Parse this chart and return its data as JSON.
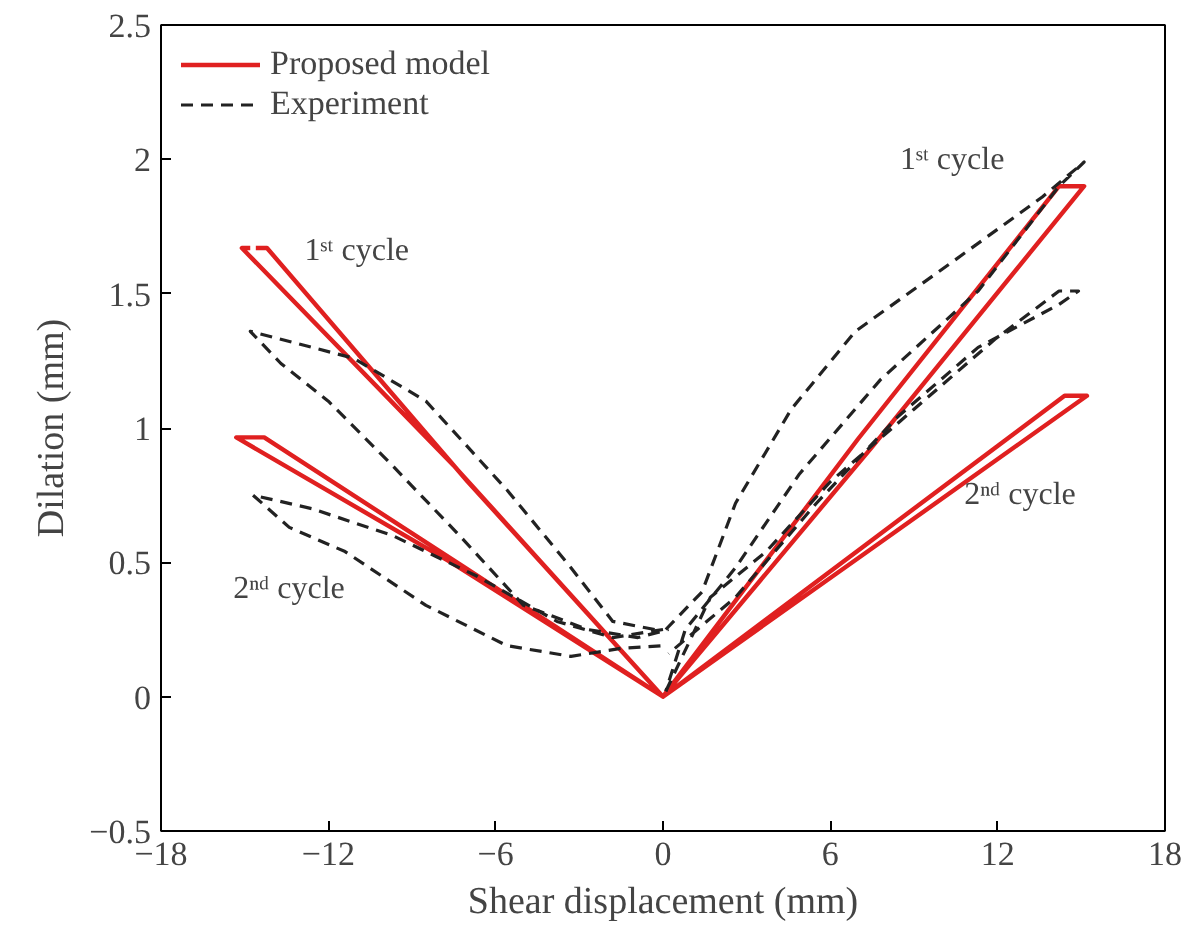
{
  "chart_data": {
    "type": "line",
    "xlabel": "Shear displacement (mm)",
    "ylabel": "Dilation (mm)",
    "xlim": [
      -18,
      18
    ],
    "xticks": [
      -18,
      -12,
      -6,
      0,
      6,
      12,
      18
    ],
    "ylim": [
      -0.5,
      2.5
    ],
    "yticks": [
      -0.5,
      0,
      0.5,
      1,
      1.5,
      2,
      2.5
    ],
    "grid": false,
    "legend": "top left",
    "marker": "none",
    "series": [
      {
        "name": "Proposed model",
        "color": "#e02020",
        "line_style": "solid",
        "x": [
          -14.6,
          -14.2,
          -7.0,
          0,
          -7.6,
          -15.3,
          -14.3,
          -7.1,
          0,
          7.5,
          15.1,
          14.2,
          7.0,
          0,
          7.6,
          15.2,
          14.4,
          7.2,
          0,
          -7.5,
          -15.1,
          -14.8
        ],
        "values": [
          1.67,
          1.67,
          0.8,
          0,
          0.5,
          0.965,
          0.965,
          0.48,
          0,
          0.93,
          1.9,
          1.9,
          0.96,
          0,
          0.56,
          1.12,
          1.12,
          0.56,
          0,
          0.86,
          1.67,
          1.67
        ]
      },
      {
        "name": "Experiment",
        "color": "#222222",
        "line_style": "dashed",
        "x": [
          -0.3,
          -1.8,
          -3.3,
          -5.6,
          -8.5,
          -11.1,
          -14.8,
          -13.7,
          -12.0,
          -9.7,
          -7.3,
          -5.0,
          -2.7,
          -0.9,
          0.2
        ],
        "values": [
          0.25,
          0.28,
          0.48,
          0.77,
          1.1,
          1.26,
          1.36,
          1.24,
          1.1,
          0.86,
          0.6,
          0.34,
          0.25,
          0.22,
          0.25
        ]
      },
      {
        "color": "#222222",
        "line_style": "dashed",
        "x": [
          0,
          -1.8,
          -3.8,
          -6.7,
          -9.7,
          -12.6,
          -14.7,
          -13.4,
          -11.4,
          -8.5,
          -5.6,
          -3.3,
          -1.5,
          0
        ],
        "values": [
          0.25,
          0.22,
          0.28,
          0.45,
          0.6,
          0.7,
          0.75,
          0.63,
          0.54,
          0.34,
          0.19,
          0.15,
          0.18,
          0.19
        ]
      },
      {
        "color": "#222222",
        "line_style": "dashed",
        "x": [
          0.1,
          1.4,
          2.6,
          4.6,
          6.9,
          10.4,
          13.6,
          15.1,
          14.2,
          11.3,
          7.8,
          4.9,
          2.6,
          0.8,
          0.1
        ],
        "values": [
          0.25,
          0.39,
          0.72,
          1.07,
          1.36,
          1.62,
          1.86,
          1.99,
          1.9,
          1.51,
          1.18,
          0.83,
          0.48,
          0.25,
          0.02
        ]
      },
      {
        "color": "#222222",
        "line_style": "dashed",
        "x": [
          0.1,
          1.7,
          3.7,
          6.0,
          9.0,
          11.9,
          14.2,
          14.9,
          14.2,
          11.3,
          8.4,
          5.5,
          2.6,
          0.2
        ],
        "values": [
          0.02,
          0.37,
          0.54,
          0.8,
          1.07,
          1.33,
          1.51,
          1.51,
          1.46,
          1.3,
          1.04,
          0.72,
          0.37,
          0.16
        ]
      }
    ],
    "annotations": [
      "1ˢᵗ cycle",
      "2ⁿᵈ cycle",
      "1ˢᵗ cycle",
      "2ⁿᵈ cycle"
    ]
  }
}
